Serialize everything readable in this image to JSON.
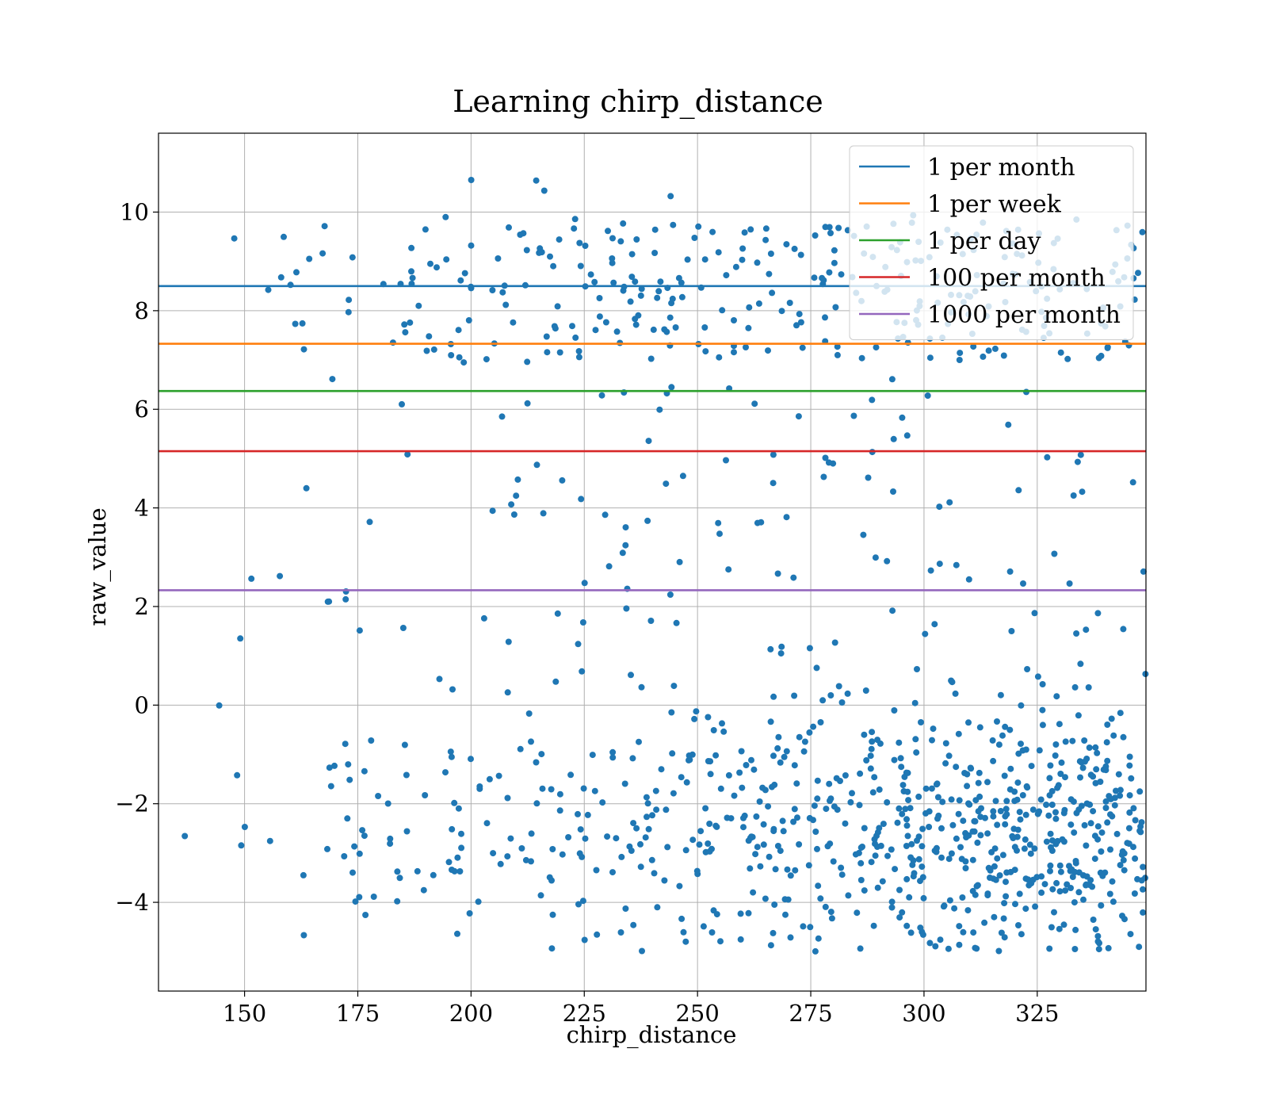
{
  "chart_data": {
    "type": "scatter",
    "title": "Learning chirp_distance",
    "xlabel": "chirp_distance",
    "ylabel": "raw_value",
    "xlim": [
      131,
      349
    ],
    "ylim": [
      -5.8,
      11.6
    ],
    "xticks": [
      150,
      175,
      200,
      225,
      250,
      275,
      300,
      325
    ],
    "yticks": [
      -4,
      -2,
      0,
      2,
      4,
      6,
      8,
      10
    ],
    "xtick_labels": [
      "150",
      "175",
      "200",
      "225",
      "250",
      "275",
      "300",
      "325"
    ],
    "ytick_labels": [
      "−4",
      "−2",
      "0",
      "2",
      "4",
      "6",
      "8",
      "10"
    ],
    "grid": true,
    "legend_position": "top-right",
    "point_color": "#1f77b4",
    "point_count": 1200,
    "point_note_seed": 12345,
    "hlines": [
      {
        "name": "1 per month",
        "y": 8.5,
        "color": "#1f77b4"
      },
      {
        "name": "1 per week",
        "y": 7.33,
        "color": "#ff7f0e"
      },
      {
        "name": "1 per day",
        "y": 6.37,
        "color": "#2ca02c"
      },
      {
        "name": "100 per month",
        "y": 5.15,
        "color": "#d62728"
      },
      {
        "name": "1000 per month",
        "y": 2.33,
        "color": "#9467bd"
      }
    ]
  }
}
